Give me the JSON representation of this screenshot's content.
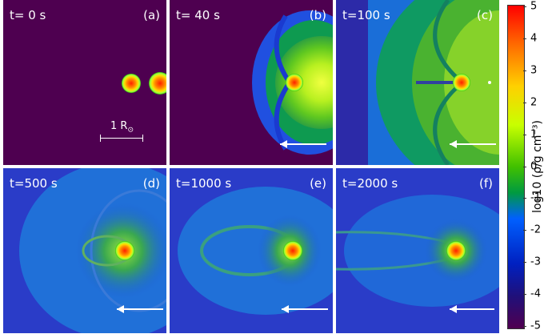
{
  "panels": [
    {
      "time": "t= 0 s",
      "label": "(a)"
    },
    {
      "time": "t= 40 s",
      "label": "(b)"
    },
    {
      "time": "t=100 s",
      "label": "(c)"
    },
    {
      "time": "t=500 s",
      "label": "(d)"
    },
    {
      "time": "t=1000 s",
      "label": "(e)"
    },
    {
      "time": "t=2000 s",
      "label": "(f)"
    }
  ],
  "scale_bar": {
    "text": "1 R",
    "subscript": "⊙"
  },
  "colorbar": {
    "label": "log10 (ρ/g cm⁻³)",
    "ticks": [
      "5",
      "4",
      "3",
      "2",
      "1",
      "0",
      "-1",
      "-2",
      "-3",
      "-4",
      "-5"
    ],
    "colors": [
      "#ff0000",
      "#ff7a00",
      "#ffd200",
      "#c8ff00",
      "#00b000",
      "#0060ff",
      "#000aa0",
      "#500050"
    ]
  }
}
